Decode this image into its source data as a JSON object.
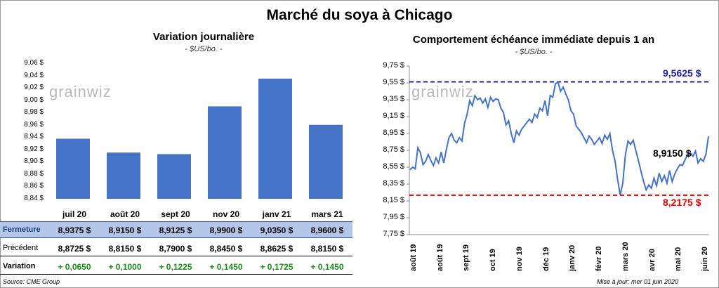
{
  "title": "Marché du soya à Chicago",
  "logo_text": "grainwiz",
  "left_panel": {
    "title": "Variation  journalière",
    "subtitle": "- $US/bo. -"
  },
  "right_panel": {
    "title": "Comportement  échéance immédiate depuis 1 an",
    "subtitle": "- $US/bo. -"
  },
  "footer": {
    "source": "Source: CME Group",
    "updated": "Mise à jour: mer 01 juin 2020"
  },
  "colors": {
    "bar": "#4472c4",
    "line": "#4472c4",
    "high_line": "#1f1fa0",
    "low_line": "#e00000",
    "fermeture_bg": "#b4c6e7",
    "variation_text": "#1a8a1a"
  },
  "table": {
    "row_labels": {
      "fermeture": "Fermeture",
      "precedent": "Précédent",
      "variation": "Variation"
    },
    "columns": [
      "juil 20",
      "août 20",
      "sept 20",
      "nov 20",
      "janv 21",
      "mars 21"
    ],
    "fermeture": [
      "8,9375  $",
      "8,9150  $",
      "8,9125  $",
      "8,9900  $",
      "9,0350  $",
      "8,9600  $"
    ],
    "precedent": [
      "8,8725  $",
      "8,8150  $",
      "8,7900  $",
      "8,8450  $",
      "8,8625  $",
      "8,8150  $"
    ],
    "variation": [
      "+ 0,0650",
      "+ 0,1000",
      "+ 0,1225",
      "+ 0,1450",
      "+ 0,1725",
      "+ 0,1450"
    ]
  },
  "chart_data": [
    {
      "type": "bar",
      "categories": [
        "juil 20",
        "août 20",
        "sept 20",
        "nov 20",
        "janv 21",
        "mars 21"
      ],
      "values": [
        8.9375,
        8.915,
        8.9125,
        8.99,
        9.035,
        8.96
      ],
      "ylim": [
        8.84,
        9.06
      ],
      "ytick_labels": [
        "9,06 $",
        "9,04 $",
        "9,02 $",
        "9,00 $",
        "8,98 $",
        "8,96 $",
        "8,94 $",
        "8,92 $",
        "8,90 $",
        "8,88 $",
        "8,86 $",
        "8,84 $"
      ],
      "ytick_values": [
        9.06,
        9.04,
        9.02,
        9.0,
        8.98,
        8.96,
        8.94,
        8.92,
        8.9,
        8.88,
        8.86,
        8.84
      ]
    },
    {
      "type": "line",
      "ylim": [
        7.75,
        9.75
      ],
      "ytick_labels": [
        "9,75 $",
        "9,55 $",
        "9,35 $",
        "9,15 $",
        "8,95 $",
        "8,75 $",
        "8,55 $",
        "8,35 $",
        "8,15 $",
        "7,95 $",
        "7,75 $"
      ],
      "ytick_values": [
        9.75,
        9.55,
        9.35,
        9.15,
        8.95,
        8.75,
        8.55,
        8.35,
        8.15,
        7.95,
        7.75
      ],
      "x_labels": [
        "août 19",
        "août 19",
        "sept 19",
        "oct 19",
        "nov 19",
        "déc 19",
        "janv 20",
        "févr 20",
        "mars 20",
        "avr 20",
        "mai 20",
        "juin 20"
      ],
      "high": {
        "value": 9.5625,
        "label": "9,5625  $"
      },
      "low": {
        "value": 8.2175,
        "label": "8,2175  $"
      },
      "last": {
        "value": 8.915,
        "label": "8,9150  $"
      },
      "values": [
        8.52,
        8.55,
        8.53,
        8.78,
        8.72,
        8.58,
        8.62,
        8.7,
        8.63,
        8.57,
        8.66,
        8.6,
        8.73,
        8.6,
        8.76,
        8.9,
        8.95,
        8.87,
        8.84,
        8.9,
        8.86,
        9.07,
        9.18,
        9.34,
        9.28,
        9.4,
        9.35,
        9.37,
        9.31,
        9.36,
        9.26,
        9.38,
        9.33,
        9.36,
        9.35,
        9.25,
        9.2,
        9.05,
        9.1,
        8.95,
        8.84,
        8.98,
        8.93,
        9.0,
        9.04,
        9.08,
        9.12,
        9.08,
        9.18,
        9.14,
        9.25,
        9.22,
        9.34,
        9.16,
        9.4,
        9.38,
        9.54,
        9.56,
        9.45,
        9.5,
        9.42,
        9.35,
        9.22,
        9.18,
        9.04,
        9.0,
        8.96,
        8.9,
        8.84,
        8.92,
        8.88,
        8.82,
        8.86,
        8.9,
        8.83,
        8.93,
        8.88,
        8.95,
        8.75,
        8.62,
        8.4,
        8.22,
        8.36,
        8.7,
        8.86,
        8.82,
        8.87,
        8.75,
        8.63,
        8.5,
        8.38,
        8.28,
        8.34,
        8.3,
        8.42,
        8.33,
        8.48,
        8.38,
        8.45,
        8.36,
        8.51,
        8.38,
        8.47,
        8.53,
        8.58,
        8.57,
        8.64,
        8.7,
        8.72,
        8.68,
        8.74,
        8.6,
        8.65,
        8.62,
        8.7,
        8.915
      ]
    }
  ]
}
